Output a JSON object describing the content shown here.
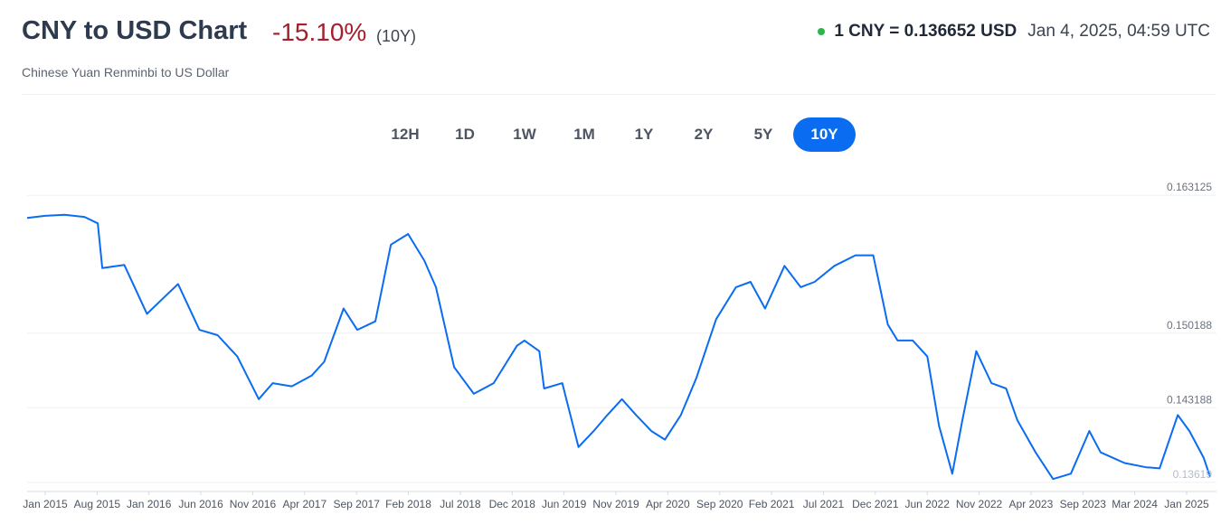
{
  "header": {
    "title": "CNY to USD Chart",
    "change": "-15.10%",
    "period": "(10Y)",
    "subtitle": "Chinese Yuan Renminbi to US Dollar",
    "rate": "1 CNY = 0.136652 USD",
    "timestamp": "Jan 4, 2025, 04:59 UTC"
  },
  "range_tabs": [
    "12H",
    "1D",
    "1W",
    "1M",
    "1Y",
    "2Y",
    "5Y",
    "10Y"
  ],
  "active_range": "10Y",
  "colors": {
    "line": "#0a6cf0",
    "change_negative": "#a3202e",
    "live_dot": "#2bb54a",
    "active_tab": "#0a6cf0"
  },
  "chart_data": {
    "type": "line",
    "title": "",
    "xlabel": "",
    "ylabel": "",
    "x_tick_labels": [
      "Jan 2015",
      "Aug 2015",
      "Jan 2016",
      "Jun 2016",
      "Nov 2016",
      "Apr 2017",
      "Sep 2017",
      "Feb 2018",
      "Jul 2018",
      "Dec 2018",
      "Jun 2019",
      "Nov 2019",
      "Apr 2020",
      "Sep 2020",
      "Feb 2021",
      "Jul 2021",
      "Dec 2021",
      "Jun 2022",
      "Nov 2022",
      "Apr 2023",
      "Sep 2023",
      "Mar 2024",
      "Jan 2025"
    ],
    "y_tick_labels": [
      "0.163125",
      "0.150188",
      "0.143188",
      "0.13619"
    ],
    "ylim": [
      0.1355,
      0.1645
    ],
    "xlim": [
      "2015-01-05",
      "2025-01-04"
    ],
    "grid": true,
    "legend": "none",
    "x": [
      "2015-01-05",
      "2015-03-01",
      "2015-05-01",
      "2015-07-01",
      "2015-08-11",
      "2015-08-25",
      "2015-11-01",
      "2016-01-10",
      "2016-03-01",
      "2016-04-15",
      "2016-06-20",
      "2016-08-15",
      "2016-10-15",
      "2016-12-20",
      "2017-02-01",
      "2017-04-01",
      "2017-06-01",
      "2017-07-10",
      "2017-09-08",
      "2017-10-20",
      "2017-12-15",
      "2018-02-01",
      "2018-03-26",
      "2018-05-15",
      "2018-06-20",
      "2018-08-15",
      "2018-10-15",
      "2018-12-15",
      "2019-02-25",
      "2019-03-20",
      "2019-05-05",
      "2019-05-20",
      "2019-07-15",
      "2019-09-03",
      "2019-10-20",
      "2019-12-01",
      "2020-01-15",
      "2020-02-28",
      "2020-04-15",
      "2020-05-27",
      "2020-07-15",
      "2020-09-01",
      "2020-11-01",
      "2021-01-01",
      "2021-02-15",
      "2021-04-01",
      "2021-05-31",
      "2021-07-20",
      "2021-09-01",
      "2021-11-01",
      "2022-01-05",
      "2022-03-01",
      "2022-04-15",
      "2022-05-15",
      "2022-07-01",
      "2022-08-15",
      "2022-09-20",
      "2022-10-31",
      "2022-12-01",
      "2023-01-13",
      "2023-03-01",
      "2023-04-15",
      "2023-05-20",
      "2023-07-15",
      "2023-09-07",
      "2023-11-01",
      "2023-12-28",
      "2024-02-01",
      "2024-04-15",
      "2024-06-20",
      "2024-08-01",
      "2024-09-26",
      "2024-11-01",
      "2024-12-15",
      "2025-01-04"
    ],
    "values": [
      0.161,
      0.1612,
      0.1613,
      0.1611,
      0.1605,
      0.1563,
      0.1566,
      0.152,
      0.1535,
      0.1548,
      0.1505,
      0.15,
      0.148,
      0.144,
      0.1455,
      0.1452,
      0.1462,
      0.1475,
      0.1525,
      0.1505,
      0.1513,
      0.1585,
      0.1595,
      0.157,
      0.1545,
      0.147,
      0.1445,
      0.1455,
      0.149,
      0.1495,
      0.1485,
      0.145,
      0.1455,
      0.1395,
      0.141,
      0.1425,
      0.144,
      0.1425,
      0.141,
      0.1402,
      0.1425,
      0.146,
      0.1515,
      0.1545,
      0.155,
      0.1525,
      0.1565,
      0.1545,
      0.155,
      0.1565,
      0.1575,
      0.1575,
      0.151,
      0.1495,
      0.1495,
      0.148,
      0.1415,
      0.137,
      0.142,
      0.1485,
      0.1455,
      0.145,
      0.142,
      0.139,
      0.1365,
      0.137,
      0.141,
      0.139,
      0.138,
      0.1376,
      0.1375,
      0.1425,
      0.141,
      0.1385,
      0.1367
    ]
  }
}
